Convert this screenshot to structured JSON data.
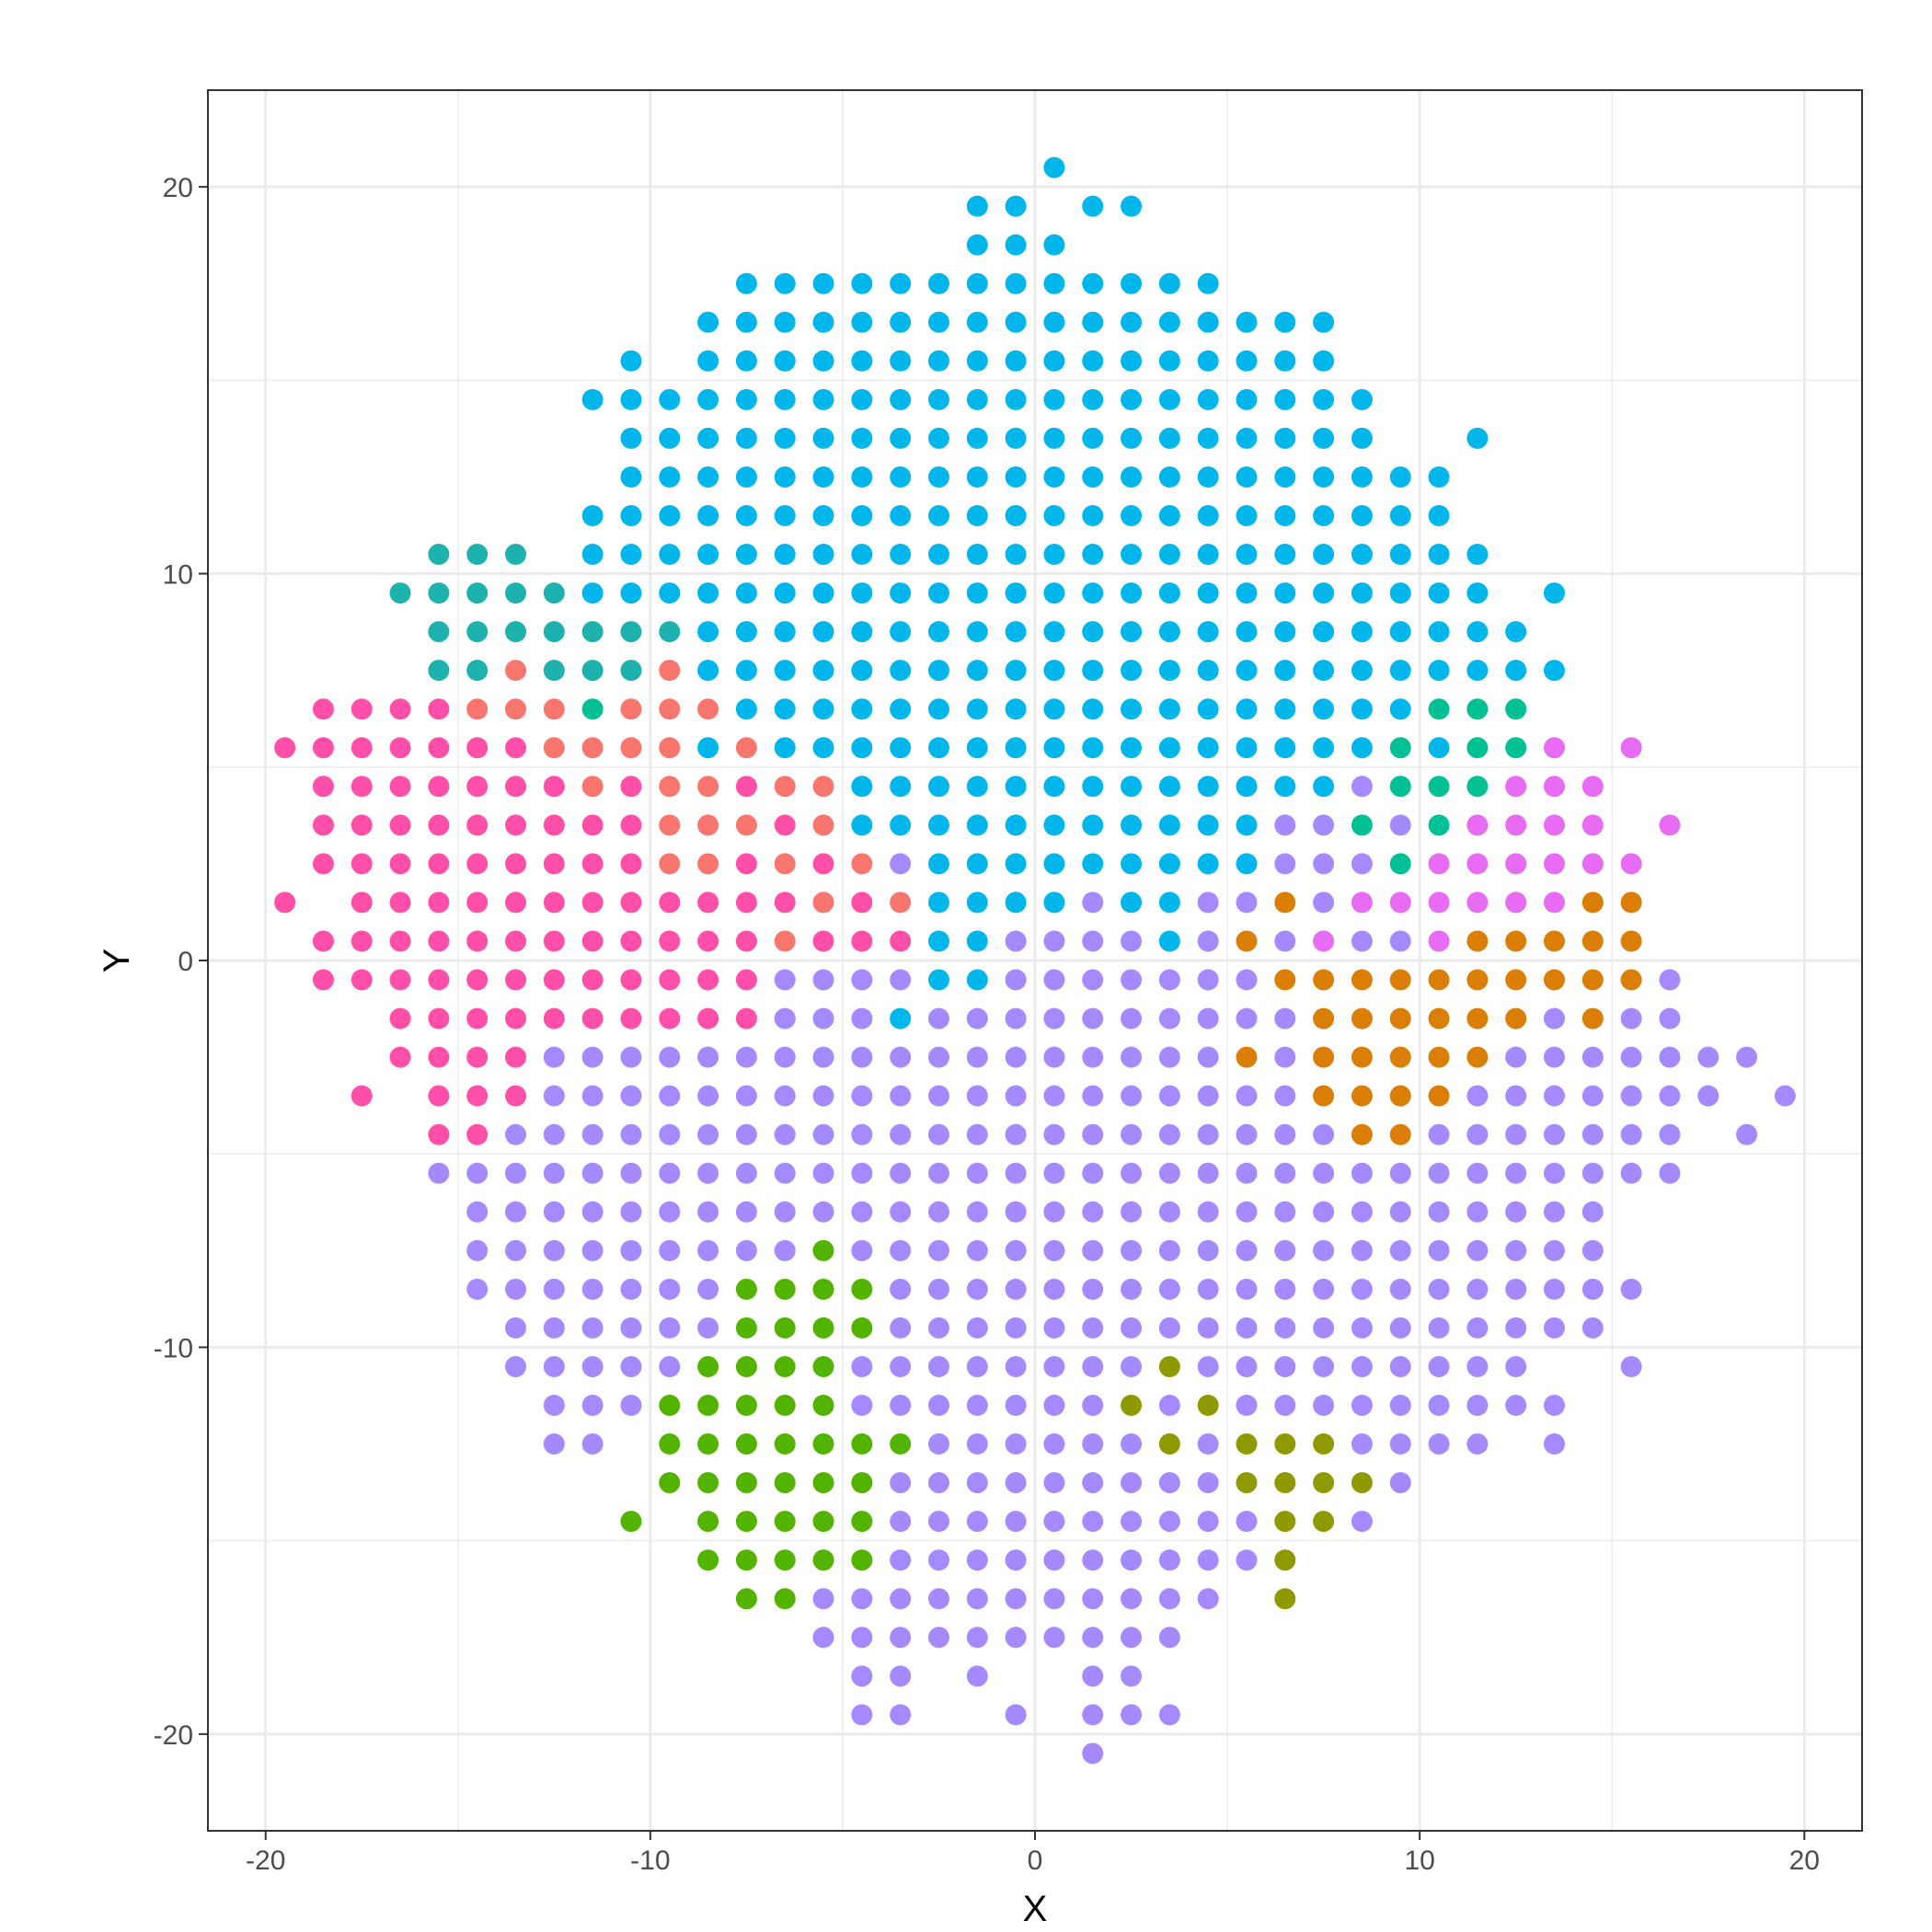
{
  "chart_data": {
    "type": "scatter",
    "xlabel": "X",
    "ylabel": "Y",
    "xlim": [
      -21.5,
      21.5
    ],
    "ylim": [
      -22.5,
      22.5
    ],
    "x_ticks": [
      -20,
      -10,
      0,
      10,
      20
    ],
    "y_ticks": [
      -20,
      -10,
      0,
      10,
      20
    ],
    "x_tick_labels": [
      "-20",
      "-10",
      "0",
      "10",
      "20"
    ],
    "y_tick_labels": [
      "-20",
      "-10",
      "0",
      "10",
      "20"
    ],
    "grid": true,
    "legend": "none",
    "colors": {
      "A": "#F8766D",
      "B": "#C49A00",
      "C": "#53B400",
      "D": "#00C094",
      "E": "#00B6EB",
      "F": "#A58AFF",
      "G": "#FB61D7",
      "H": "#FF4FA8",
      "I": "#1EB2AE",
      "J": "#8F9A00",
      "K": "#E76BF3",
      "L": "#DA7E06"
    },
    "default_class": "F",
    "grid_rows": [
      {
        "y": 20.5,
        "x_start": 0.5,
        "x_end": 0.5
      },
      {
        "y": 19.5,
        "x_start": -1.5,
        "x_end": 2.5,
        "missing": [
          0.5
        ]
      },
      {
        "y": 18.5,
        "x_start": -1.5,
        "x_end": 0.5
      },
      {
        "y": 17.5,
        "x_start": -7.5,
        "x_end": 4.5
      },
      {
        "y": 16.5,
        "x_start": -8.5,
        "x_end": 7.5
      },
      {
        "y": 15.5,
        "x_start": -10.5,
        "x_end": 7.5,
        "missing": [
          -9.5
        ]
      },
      {
        "y": 14.5,
        "x_start": -11.5,
        "x_end": 8.5
      },
      {
        "y": 13.5,
        "x_start": -10.5,
        "x_end": 11.5,
        "missing": [
          9.5,
          10.5
        ]
      },
      {
        "y": 12.5,
        "x_start": -10.5,
        "x_end": 10.5
      },
      {
        "y": 11.5,
        "x_start": -11.5,
        "x_end": 10.5
      },
      {
        "y": 10.5,
        "x_start": -15.5,
        "x_end": 11.5,
        "missing": [
          -12.5
        ]
      },
      {
        "y": 9.5,
        "x_start": -16.5,
        "x_end": 13.5,
        "missing": [
          12.5
        ]
      },
      {
        "y": 8.5,
        "x_start": -15.5,
        "x_end": 12.5
      },
      {
        "y": 7.5,
        "x_start": -15.5,
        "x_end": 13.5
      },
      {
        "y": 6.5,
        "x_start": -18.5,
        "x_end": 12.5
      },
      {
        "y": 5.5,
        "x_start": -19.5,
        "x_end": 15.5,
        "missing": [
          14.5
        ]
      },
      {
        "y": 4.5,
        "x_start": -18.5,
        "x_end": 14.5
      },
      {
        "y": 3.5,
        "x_start": -18.5,
        "x_end": 16.5,
        "missing": [
          15.5
        ]
      },
      {
        "y": 2.5,
        "x_start": -18.5,
        "x_end": 15.5
      },
      {
        "y": 1.5,
        "x_start": -19.5,
        "x_end": 15.5,
        "missing": [
          -18.5
        ]
      },
      {
        "y": 0.5,
        "x_start": -18.5,
        "x_end": 15.5
      },
      {
        "y": -0.5,
        "x_start": -18.5,
        "x_end": 16.5
      },
      {
        "y": -1.5,
        "x_start": -16.5,
        "x_end": 16.5
      },
      {
        "y": -2.5,
        "x_start": -16.5,
        "x_end": 18.5
      },
      {
        "y": -3.5,
        "x_start": -17.5,
        "x_end": 19.5,
        "missing": [
          -16.5,
          18.5
        ]
      },
      {
        "y": -4.5,
        "x_start": -15.5,
        "x_end": 18.5,
        "missing": [
          17.5
        ]
      },
      {
        "y": -5.5,
        "x_start": -15.5,
        "x_end": 16.5
      },
      {
        "y": -6.5,
        "x_start": -14.5,
        "x_end": 14.5
      },
      {
        "y": -7.5,
        "x_start": -14.5,
        "x_end": 14.5
      },
      {
        "y": -8.5,
        "x_start": -14.5,
        "x_end": 15.5
      },
      {
        "y": -9.5,
        "x_start": -13.5,
        "x_end": 14.5
      },
      {
        "y": -10.5,
        "x_start": -13.5,
        "x_end": 15.5,
        "missing": [
          13.5,
          14.5
        ]
      },
      {
        "y": -11.5,
        "x_start": -12.5,
        "x_end": 13.5
      },
      {
        "y": -12.5,
        "x_start": -12.5,
        "x_end": 13.5,
        "missing": [
          -10.5,
          12.5
        ]
      },
      {
        "y": -13.5,
        "x_start": -9.5,
        "x_end": 9.5
      },
      {
        "y": -14.5,
        "x_start": -10.5,
        "x_end": 8.5,
        "missing": [
          -9.5
        ]
      },
      {
        "y": -15.5,
        "x_start": -8.5,
        "x_end": 6.5
      },
      {
        "y": -16.5,
        "x_start": -7.5,
        "x_end": 6.5,
        "missing": [
          5.5
        ]
      },
      {
        "y": -17.5,
        "x_start": -5.5,
        "x_end": 3.5
      },
      {
        "y": -18.5,
        "x_start": -4.5,
        "x_end": 2.5,
        "missing": [
          -2.5,
          -0.5,
          0.5
        ]
      },
      {
        "y": -19.5,
        "x_start": -4.5,
        "x_end": 3.5,
        "missing": [
          -2.5,
          -1.5,
          0.5
        ]
      },
      {
        "y": -20.5,
        "x_start": 1.5,
        "x_end": 1.5
      }
    ],
    "class_runs": [
      {
        "y": 20.5,
        "x_start": 0.5,
        "x_end": 0.5,
        "class": "E"
      },
      {
        "y": 19.5,
        "x_start": -1.5,
        "x_end": 2.5,
        "class": "E"
      },
      {
        "y": 18.5,
        "x_start": -1.5,
        "x_end": 0.5,
        "class": "E"
      },
      {
        "y": 17.5,
        "x_start": -7.5,
        "x_end": 4.5,
        "class": "E"
      },
      {
        "y": 16.5,
        "x_start": -8.5,
        "x_end": 7.5,
        "class": "E"
      },
      {
        "y": 15.5,
        "x_start": -10.5,
        "x_end": 7.5,
        "class": "E"
      },
      {
        "y": 14.5,
        "x_start": -11.5,
        "x_end": 8.5,
        "class": "E"
      },
      {
        "y": 13.5,
        "x_start": -10.5,
        "x_end": 11.5,
        "class": "E"
      },
      {
        "y": 12.5,
        "x_start": -10.5,
        "x_end": 10.5,
        "class": "E"
      },
      {
        "y": 11.5,
        "x_start": -11.5,
        "x_end": 10.5,
        "class": "E"
      },
      {
        "y": 10.5,
        "x_start": -11.5,
        "x_end": 11.5,
        "class": "E"
      },
      {
        "y": 10.5,
        "x_start": -15.5,
        "x_end": -13.5,
        "class": "I"
      },
      {
        "y": 9.5,
        "x_start": -11.5,
        "x_end": 13.5,
        "class": "E"
      },
      {
        "y": 9.5,
        "x_start": -16.5,
        "x_end": -12.5,
        "class": "I"
      },
      {
        "y": 8.5,
        "x_start": -8.5,
        "x_end": 12.5,
        "class": "E"
      },
      {
        "y": 8.5,
        "x_start": -15.5,
        "x_end": -9.5,
        "class": "I"
      },
      {
        "y": 7.5,
        "x_start": -8.5,
        "x_end": 13.5,
        "class": "E"
      },
      {
        "y": 7.5,
        "x_start": -15.5,
        "x_end": -14.5,
        "class": "I"
      },
      {
        "y": 7.5,
        "x_start": -13.5,
        "x_end": -13.5,
        "class": "A"
      },
      {
        "y": 7.5,
        "x_start": -12.5,
        "x_end": -10.5,
        "class": "I"
      },
      {
        "y": 7.5,
        "x_start": -9.5,
        "x_end": -9.5,
        "class": "A"
      },
      {
        "y": 6.5,
        "x_start": -18.5,
        "x_end": -15.5,
        "class": "H"
      },
      {
        "y": 6.5,
        "x_start": -14.5,
        "x_end": -12.5,
        "class": "A"
      },
      {
        "y": 6.5,
        "x_start": -11.5,
        "x_end": -11.5,
        "class": "D"
      },
      {
        "y": 6.5,
        "x_start": -10.5,
        "x_end": -8.5,
        "class": "A"
      },
      {
        "y": 6.5,
        "x_start": -7.5,
        "x_end": 9.5,
        "class": "E"
      },
      {
        "y": 6.5,
        "x_start": 10.5,
        "x_end": 12.5,
        "class": "D"
      },
      {
        "y": 5.5,
        "x_start": -19.5,
        "x_end": -13.5,
        "class": "H"
      },
      {
        "y": 5.5,
        "x_start": -12.5,
        "x_end": -9.5,
        "class": "A"
      },
      {
        "y": 5.5,
        "x_start": -8.5,
        "x_end": -8.5,
        "class": "E"
      },
      {
        "y": 5.5,
        "x_start": -7.5,
        "x_end": -7.5,
        "class": "A"
      },
      {
        "y": 5.5,
        "x_start": -6.5,
        "x_end": 8.5,
        "class": "E"
      },
      {
        "y": 5.5,
        "x_start": 9.5,
        "x_end": 9.5,
        "class": "D"
      },
      {
        "y": 5.5,
        "x_start": 10.5,
        "x_end": 10.5,
        "class": "E"
      },
      {
        "y": 5.5,
        "x_start": 11.5,
        "x_end": 12.5,
        "class": "D"
      },
      {
        "y": 5.5,
        "x_start": 13.5,
        "x_end": 15.5,
        "class": "K"
      },
      {
        "y": 4.5,
        "x_start": -18.5,
        "x_end": -12.5,
        "class": "H"
      },
      {
        "y": 4.5,
        "x_start": -11.5,
        "x_end": -11.5,
        "class": "A"
      },
      {
        "y": 4.5,
        "x_start": -10.5,
        "x_end": -10.5,
        "class": "H"
      },
      {
        "y": 4.5,
        "x_start": -9.5,
        "x_end": -8.5,
        "class": "A"
      },
      {
        "y": 4.5,
        "x_start": -7.5,
        "x_end": -7.5,
        "class": "H"
      },
      {
        "y": 4.5,
        "x_start": -6.5,
        "x_end": -5.5,
        "class": "A"
      },
      {
        "y": 4.5,
        "x_start": -4.5,
        "x_end": 7.5,
        "class": "E"
      },
      {
        "y": 4.5,
        "x_start": 9.5,
        "x_end": 11.5,
        "class": "D"
      },
      {
        "y": 4.5,
        "x_start": 12.5,
        "x_end": 14.5,
        "class": "K"
      },
      {
        "y": 3.5,
        "x_start": -18.5,
        "x_end": -10.5,
        "class": "H"
      },
      {
        "y": 3.5,
        "x_start": -9.5,
        "x_end": -7.5,
        "class": "A"
      },
      {
        "y": 3.5,
        "x_start": -6.5,
        "x_end": -6.5,
        "class": "H"
      },
      {
        "y": 3.5,
        "x_start": -5.5,
        "x_end": -5.5,
        "class": "A"
      },
      {
        "y": 3.5,
        "x_start": -4.5,
        "x_end": 5.5,
        "class": "E"
      },
      {
        "y": 3.5,
        "x_start": 8.5,
        "x_end": 8.5,
        "class": "D"
      },
      {
        "y": 3.5,
        "x_start": 10.5,
        "x_end": 10.5,
        "class": "D"
      },
      {
        "y": 3.5,
        "x_start": 11.5,
        "x_end": 16.5,
        "class": "K"
      },
      {
        "y": 2.5,
        "x_start": -18.5,
        "x_end": -10.5,
        "class": "H"
      },
      {
        "y": 2.5,
        "x_start": -9.5,
        "x_end": -8.5,
        "class": "A"
      },
      {
        "y": 2.5,
        "x_start": -7.5,
        "x_end": -7.5,
        "class": "H"
      },
      {
        "y": 2.5,
        "x_start": -6.5,
        "x_end": -6.5,
        "class": "A"
      },
      {
        "y": 2.5,
        "x_start": -5.5,
        "x_end": -5.5,
        "class": "H"
      },
      {
        "y": 2.5,
        "x_start": -4.5,
        "x_end": -4.5,
        "class": "A"
      },
      {
        "y": 2.5,
        "x_start": -2.5,
        "x_end": 5.5,
        "class": "E"
      },
      {
        "y": 2.5,
        "x_start": 9.5,
        "x_end": 9.5,
        "class": "D"
      },
      {
        "y": 2.5,
        "x_start": 10.5,
        "x_end": 15.5,
        "class": "K"
      },
      {
        "y": 1.5,
        "x_start": -19.5,
        "x_end": -6.5,
        "class": "H"
      },
      {
        "y": 1.5,
        "x_start": -5.5,
        "x_end": -5.5,
        "class": "A"
      },
      {
        "y": 1.5,
        "x_start": -4.5,
        "x_end": -4.5,
        "class": "H"
      },
      {
        "y": 1.5,
        "x_start": -3.5,
        "x_end": -3.5,
        "class": "A"
      },
      {
        "y": 1.5,
        "x_start": -2.5,
        "x_end": 0.5,
        "class": "E"
      },
      {
        "y": 1.5,
        "x_start": 2.5,
        "x_end": 3.5,
        "class": "E"
      },
      {
        "y": 1.5,
        "x_start": 6.5,
        "x_end": 6.5,
        "class": "L"
      },
      {
        "y": 1.5,
        "x_start": 8.5,
        "x_end": 13.5,
        "class": "K"
      },
      {
        "y": 1.5,
        "x_start": 14.5,
        "x_end": 15.5,
        "class": "L"
      },
      {
        "y": 0.5,
        "x_start": -18.5,
        "x_end": -7.5,
        "class": "H"
      },
      {
        "y": 0.5,
        "x_start": -6.5,
        "x_end": -6.5,
        "class": "A"
      },
      {
        "y": 0.5,
        "x_start": -5.5,
        "x_end": -3.5,
        "class": "H"
      },
      {
        "y": 0.5,
        "x_start": -2.5,
        "x_end": -1.5,
        "class": "E"
      },
      {
        "y": 0.5,
        "x_start": 3.5,
        "x_end": 3.5,
        "class": "E"
      },
      {
        "y": 0.5,
        "x_start": 5.5,
        "x_end": 5.5,
        "class": "L"
      },
      {
        "y": 0.5,
        "x_start": 7.5,
        "x_end": 7.5,
        "class": "K"
      },
      {
        "y": 0.5,
        "x_start": 10.5,
        "x_end": 10.5,
        "class": "K"
      },
      {
        "y": 0.5,
        "x_start": 11.5,
        "x_end": 15.5,
        "class": "L"
      },
      {
        "y": -0.5,
        "x_start": -18.5,
        "x_end": -7.5,
        "class": "H"
      },
      {
        "y": -0.5,
        "x_start": -2.5,
        "x_end": -1.5,
        "class": "E"
      },
      {
        "y": -0.5,
        "x_start": 6.5,
        "x_end": 15.5,
        "class": "L"
      },
      {
        "y": -1.5,
        "x_start": -16.5,
        "x_end": -7.5,
        "class": "H"
      },
      {
        "y": -1.5,
        "x_start": -3.5,
        "x_end": -3.5,
        "class": "E"
      },
      {
        "y": -1.5,
        "x_start": 7.5,
        "x_end": 12.5,
        "class": "L"
      },
      {
        "y": -1.5,
        "x_start": 14.5,
        "x_end": 14.5,
        "class": "L"
      },
      {
        "y": -2.5,
        "x_start": -16.5,
        "x_end": -13.5,
        "class": "H"
      },
      {
        "y": -2.5,
        "x_start": 5.5,
        "x_end": 5.5,
        "class": "L"
      },
      {
        "y": -2.5,
        "x_start": 7.5,
        "x_end": 11.5,
        "class": "L"
      },
      {
        "y": -3.5,
        "x_start": -17.5,
        "x_end": -17.5,
        "class": "H"
      },
      {
        "y": -3.5,
        "x_start": -15.5,
        "x_end": -13.5,
        "class": "H"
      },
      {
        "y": -3.5,
        "x_start": 7.5,
        "x_end": 10.5,
        "class": "L"
      },
      {
        "y": -4.5,
        "x_start": -15.5,
        "x_end": -14.5,
        "class": "H"
      },
      {
        "y": -4.5,
        "x_start": 8.5,
        "x_end": 9.5,
        "class": "L"
      },
      {
        "y": -7.5,
        "x_start": -5.5,
        "x_end": -5.5,
        "class": "C"
      },
      {
        "y": -8.5,
        "x_start": -7.5,
        "x_end": -4.5,
        "class": "C"
      },
      {
        "y": -9.5,
        "x_start": -7.5,
        "x_end": -4.5,
        "class": "C"
      },
      {
        "y": -10.5,
        "x_start": -8.5,
        "x_end": -5.5,
        "class": "C"
      },
      {
        "y": -10.5,
        "x_start": 3.5,
        "x_end": 3.5,
        "class": "J"
      },
      {
        "y": -11.5,
        "x_start": -9.5,
        "x_end": -5.5,
        "class": "C"
      },
      {
        "y": -11.5,
        "x_start": 2.5,
        "x_end": 2.5,
        "class": "J"
      },
      {
        "y": -11.5,
        "x_start": 4.5,
        "x_end": 4.5,
        "class": "J"
      },
      {
        "y": -12.5,
        "x_start": -10.5,
        "x_end": -3.5,
        "class": "C"
      },
      {
        "y": -12.5,
        "x_start": 3.5,
        "x_end": 3.5,
        "class": "J"
      },
      {
        "y": -12.5,
        "x_start": 5.5,
        "x_end": 7.5,
        "class": "J"
      },
      {
        "y": -13.5,
        "x_start": -9.5,
        "x_end": -4.5,
        "class": "C"
      },
      {
        "y": -13.5,
        "x_start": 5.5,
        "x_end": 8.5,
        "class": "J"
      },
      {
        "y": -14.5,
        "x_start": -10.5,
        "x_end": -10.5,
        "class": "C"
      },
      {
        "y": -14.5,
        "x_start": -8.5,
        "x_end": -4.5,
        "class": "C"
      },
      {
        "y": -14.5,
        "x_start": 6.5,
        "x_end": 7.5,
        "class": "J"
      },
      {
        "y": -15.5,
        "x_start": -8.5,
        "x_end": -4.5,
        "class": "C"
      },
      {
        "y": -15.5,
        "x_start": 6.5,
        "x_end": 6.5,
        "class": "J"
      },
      {
        "y": -16.5,
        "x_start": -7.5,
        "x_end": -6.5,
        "class": "C"
      },
      {
        "y": -16.5,
        "x_start": 6.5,
        "x_end": 6.5,
        "class": "J"
      }
    ]
  }
}
